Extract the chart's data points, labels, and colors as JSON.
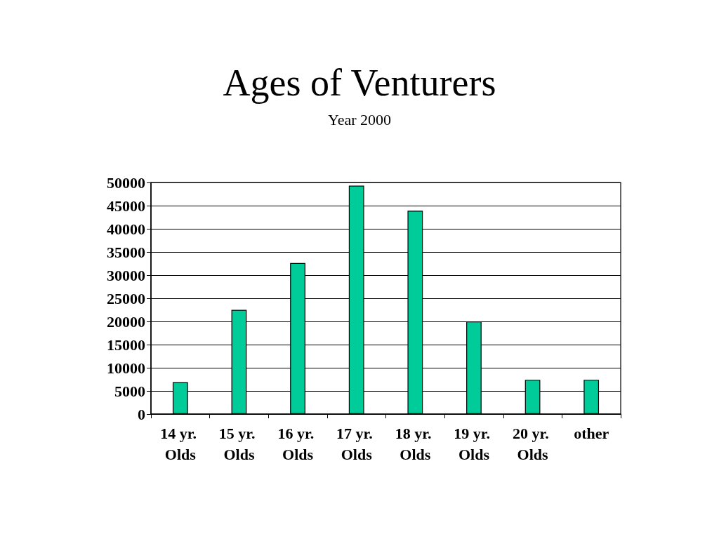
{
  "chart_data": {
    "type": "bar",
    "title": "Ages of Venturers",
    "subtitle": "Year 2000",
    "categories": [
      "14 yr. Olds",
      "15 yr. Olds",
      "16 yr. Olds",
      "17 yr. Olds",
      "18 yr. Olds",
      "19 yr. Olds",
      "20 yr. Olds",
      "other"
    ],
    "values": [
      6900,
      22500,
      32600,
      49300,
      43900,
      20000,
      7400,
      7400
    ],
    "color": "#00cc99",
    "ylim": [
      0,
      50000
    ],
    "yticks": [
      0,
      5000,
      10000,
      15000,
      20000,
      25000,
      30000,
      35000,
      40000,
      45000,
      50000
    ],
    "grid": "y"
  }
}
